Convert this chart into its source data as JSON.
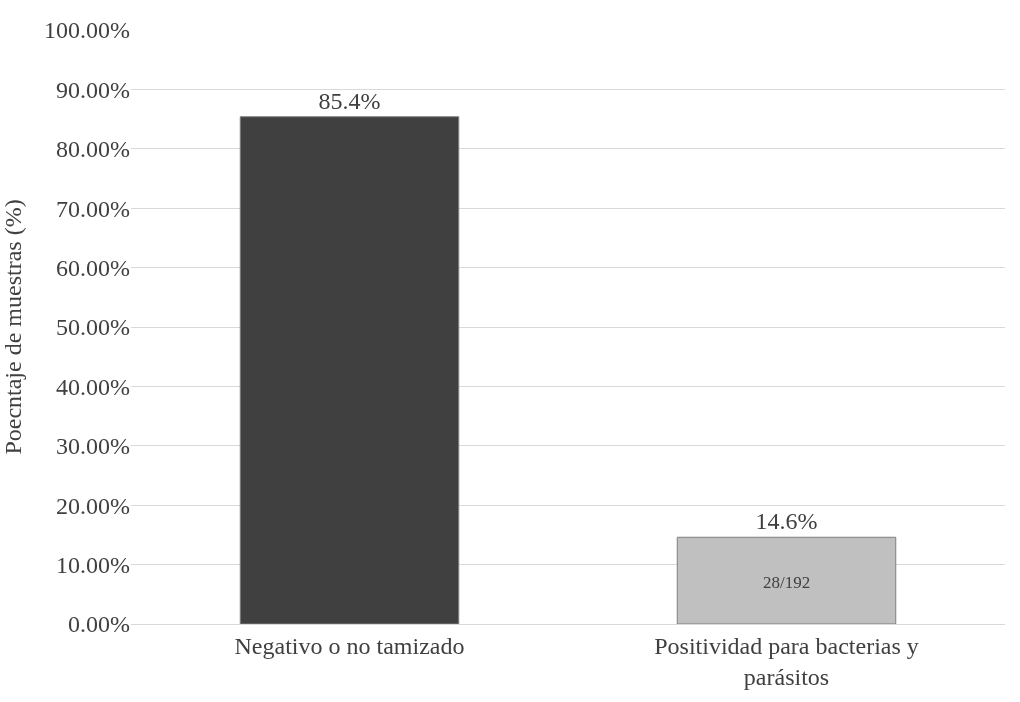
{
  "chart_data": {
    "type": "bar",
    "ylabel": "Poecntaje de muestras (%)",
    "categories": [
      "Negativo o no tamizado",
      "Positividad para bacterias y\nparásitos"
    ],
    "values": [
      85.4,
      14.6
    ],
    "colors": [
      "#404040",
      "#c0c0c0"
    ],
    "value_labels": [
      "85.4%",
      "14.6%"
    ],
    "annotations": [
      "28/192"
    ],
    "ylim": [
      0,
      100
    ],
    "yticks": [
      {
        "value": 0,
        "label": "0.00%"
      },
      {
        "value": 10,
        "label": "10.00%"
      },
      {
        "value": 20,
        "label": "20.00%"
      },
      {
        "value": 30,
        "label": "30.00%"
      },
      {
        "value": 40,
        "label": "40.00%"
      },
      {
        "value": 50,
        "label": "50.00%"
      },
      {
        "value": 60,
        "label": "60.00%"
      },
      {
        "value": 70,
        "label": "70.00%"
      },
      {
        "value": 80,
        "label": "80.00%"
      },
      {
        "value": 90,
        "label": "90.00%"
      },
      {
        "value": 100,
        "label": "100.00%"
      }
    ],
    "grid": "y"
  }
}
